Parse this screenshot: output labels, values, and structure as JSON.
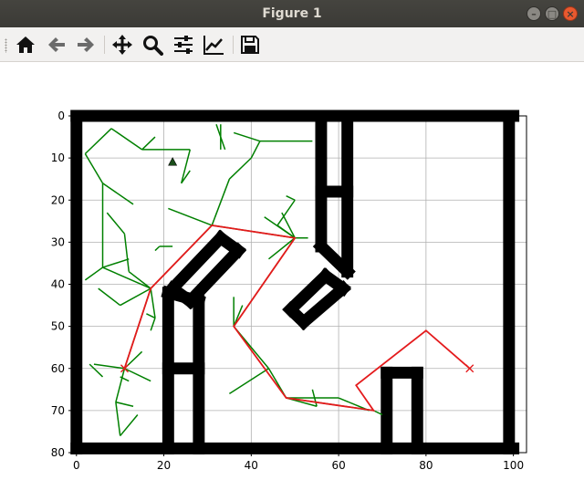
{
  "window": {
    "title": "Figure 1",
    "controls": {
      "minimize": "–",
      "maximize": "□",
      "close": "×"
    }
  },
  "toolbar": {
    "buttons": [
      {
        "name": "home",
        "icon": "home-icon"
      },
      {
        "name": "back",
        "icon": "arrow-left-icon"
      },
      {
        "name": "forward",
        "icon": "arrow-right-icon"
      },
      {
        "name": "pan",
        "icon": "move-arrows-icon"
      },
      {
        "name": "zoom",
        "icon": "magnifier-icon"
      },
      {
        "name": "configure-subplots",
        "icon": "sliders-icon"
      },
      {
        "name": "edit-axis",
        "icon": "line-chart-icon"
      },
      {
        "name": "save",
        "icon": "floppy-disk-icon"
      }
    ]
  },
  "chart_data": {
    "type": "scatter",
    "title": "",
    "xlabel": "",
    "ylabel": "",
    "xlim": [
      -1,
      103
    ],
    "ylim": [
      80,
      0
    ],
    "y_inverted": true,
    "grid": true,
    "x_ticks": [
      0,
      20,
      40,
      60,
      80,
      100
    ],
    "y_ticks": [
      0,
      10,
      20,
      30,
      40,
      50,
      60,
      70,
      80
    ],
    "colors": {
      "obstacles": "#000000",
      "tree": "#008000",
      "path": "#e41a1c",
      "start_goal": "#e41a1c",
      "sample": "#1a4d1a"
    },
    "obstacles": [
      [
        [
          0,
          0
        ],
        [
          100,
          0
        ]
      ],
      [
        [
          0,
          79
        ],
        [
          100,
          79
        ]
      ],
      [
        [
          0,
          0
        ],
        [
          0,
          79
        ]
      ],
      [
        [
          99,
          0
        ],
        [
          99,
          79
        ]
      ],
      [
        [
          56,
          0
        ],
        [
          56,
          31
        ]
      ],
      [
        [
          62,
          0
        ],
        [
          62,
          37
        ]
      ],
      [
        [
          56,
          18
        ],
        [
          62,
          18
        ]
      ],
      [
        [
          56,
          31
        ],
        [
          62,
          37
        ]
      ],
      [
        [
          21,
          42
        ],
        [
          21,
          79
        ]
      ],
      [
        [
          28,
          44
        ],
        [
          28,
          79
        ]
      ],
      [
        [
          21,
          42
        ],
        [
          28,
          44
        ]
      ],
      [
        [
          21,
          60
        ],
        [
          28,
          60
        ]
      ],
      [
        [
          22,
          41
        ],
        [
          33,
          29
        ]
      ],
      [
        [
          26,
          44
        ],
        [
          37,
          32
        ]
      ],
      [
        [
          22,
          41
        ],
        [
          26,
          44
        ]
      ],
      [
        [
          33,
          29
        ],
        [
          37,
          32
        ]
      ],
      [
        [
          49,
          46
        ],
        [
          57,
          38
        ]
      ],
      [
        [
          52,
          49
        ],
        [
          61,
          41
        ]
      ],
      [
        [
          49,
          46
        ],
        [
          52,
          49
        ]
      ],
      [
        [
          57,
          38
        ],
        [
          61,
          41
        ]
      ],
      [
        [
          71,
          61
        ],
        [
          71,
          79
        ]
      ],
      [
        [
          78,
          61
        ],
        [
          78,
          79
        ]
      ],
      [
        [
          71,
          61
        ],
        [
          78,
          61
        ]
      ]
    ],
    "tree_edges": [
      [
        [
          8,
          3
        ],
        [
          2,
          9
        ]
      ],
      [
        [
          8,
          3
        ],
        [
          15,
          8
        ]
      ],
      [
        [
          2,
          9
        ],
        [
          6,
          16
        ]
      ],
      [
        [
          6,
          16
        ],
        [
          13,
          21
        ]
      ],
      [
        [
          6,
          16
        ],
        [
          6,
          36
        ]
      ],
      [
        [
          6,
          36
        ],
        [
          2,
          39
        ]
      ],
      [
        [
          6,
          36
        ],
        [
          12,
          34
        ]
      ],
      [
        [
          6,
          36
        ],
        [
          17,
          41
        ]
      ],
      [
        [
          7,
          23
        ],
        [
          11,
          28
        ]
      ],
      [
        [
          11,
          28
        ],
        [
          12,
          37
        ]
      ],
      [
        [
          5,
          41
        ],
        [
          10,
          45
        ]
      ],
      [
        [
          10,
          45
        ],
        [
          17,
          41
        ]
      ],
      [
        [
          17,
          41
        ],
        [
          12,
          37
        ]
      ],
      [
        [
          17,
          41
        ],
        [
          31,
          26
        ]
      ],
      [
        [
          17,
          41
        ],
        [
          18,
          48
        ]
      ],
      [
        [
          18,
          48
        ],
        [
          17,
          51
        ]
      ],
      [
        [
          18,
          48
        ],
        [
          16,
          47
        ]
      ],
      [
        [
          17,
          41
        ],
        [
          11,
          60
        ]
      ],
      [
        [
          11,
          60
        ],
        [
          4,
          59
        ]
      ],
      [
        [
          11,
          60
        ],
        [
          17,
          63
        ]
      ],
      [
        [
          11,
          60
        ],
        [
          9,
          68
        ]
      ],
      [
        [
          9,
          68
        ],
        [
          10,
          76
        ]
      ],
      [
        [
          10,
          76
        ],
        [
          14,
          71
        ]
      ],
      [
        [
          9,
          68
        ],
        [
          13,
          69
        ]
      ],
      [
        [
          11,
          60
        ],
        [
          15,
          56
        ]
      ],
      [
        [
          10,
          62
        ],
        [
          12,
          63
        ]
      ],
      [
        [
          6,
          62
        ],
        [
          3,
          59
        ]
      ],
      [
        [
          19,
          31
        ],
        [
          18,
          32
        ]
      ],
      [
        [
          19,
          31
        ],
        [
          22,
          31
        ]
      ],
      [
        [
          15,
          8
        ],
        [
          18,
          5
        ]
      ],
      [
        [
          15,
          8
        ],
        [
          26,
          8
        ]
      ],
      [
        [
          26,
          8
        ],
        [
          24,
          16
        ]
      ],
      [
        [
          24,
          16
        ],
        [
          26,
          13
        ]
      ],
      [
        [
          31,
          26
        ],
        [
          21,
          22
        ]
      ],
      [
        [
          31,
          26
        ],
        [
          35,
          15
        ]
      ],
      [
        [
          35,
          15
        ],
        [
          40,
          10
        ]
      ],
      [
        [
          40,
          10
        ],
        [
          42,
          6
        ]
      ],
      [
        [
          42,
          6
        ],
        [
          36,
          4
        ]
      ],
      [
        [
          42,
          6
        ],
        [
          54,
          6
        ]
      ],
      [
        [
          31,
          26
        ],
        [
          50,
          29
        ]
      ],
      [
        [
          50,
          29
        ],
        [
          53,
          29
        ]
      ],
      [
        [
          50,
          29
        ],
        [
          47,
          23
        ]
      ],
      [
        [
          50,
          29
        ],
        [
          46,
          26
        ]
      ],
      [
        [
          50,
          29
        ],
        [
          43,
          24
        ]
      ],
      [
        [
          46,
          26
        ],
        [
          50,
          20
        ]
      ],
      [
        [
          50,
          20
        ],
        [
          48,
          19
        ]
      ],
      [
        [
          50,
          29
        ],
        [
          44,
          34
        ]
      ],
      [
        [
          50,
          29
        ],
        [
          36,
          50
        ]
      ],
      [
        [
          36,
          50
        ],
        [
          36,
          43
        ]
      ],
      [
        [
          36,
          50
        ],
        [
          38,
          45
        ]
      ],
      [
        [
          36,
          50
        ],
        [
          44,
          60
        ]
      ],
      [
        [
          44,
          60
        ],
        [
          35,
          66
        ]
      ],
      [
        [
          44,
          60
        ],
        [
          48,
          67
        ]
      ],
      [
        [
          48,
          67
        ],
        [
          60,
          67
        ]
      ],
      [
        [
          60,
          67
        ],
        [
          67,
          70
        ]
      ],
      [
        [
          48,
          67
        ],
        [
          55,
          69
        ]
      ],
      [
        [
          55,
          69
        ],
        [
          54,
          65
        ]
      ],
      [
        [
          48,
          67
        ],
        [
          68,
          70
        ]
      ],
      [
        [
          68,
          70
        ],
        [
          70,
          71
        ]
      ],
      [
        [
          33,
          2
        ],
        [
          33,
          8
        ]
      ],
      [
        [
          32,
          2
        ],
        [
          34,
          8
        ]
      ]
    ],
    "path": [
      [
        11,
        60
      ],
      [
        17,
        41
      ],
      [
        31,
        26
      ],
      [
        50,
        29
      ],
      [
        36,
        50
      ],
      [
        48,
        67
      ],
      [
        68,
        70
      ],
      [
        64,
        64
      ],
      [
        80,
        51
      ],
      [
        90,
        60
      ]
    ],
    "start": [
      11,
      60
    ],
    "goal": [
      90,
      60
    ],
    "sample_marker": [
      22,
      11
    ]
  }
}
